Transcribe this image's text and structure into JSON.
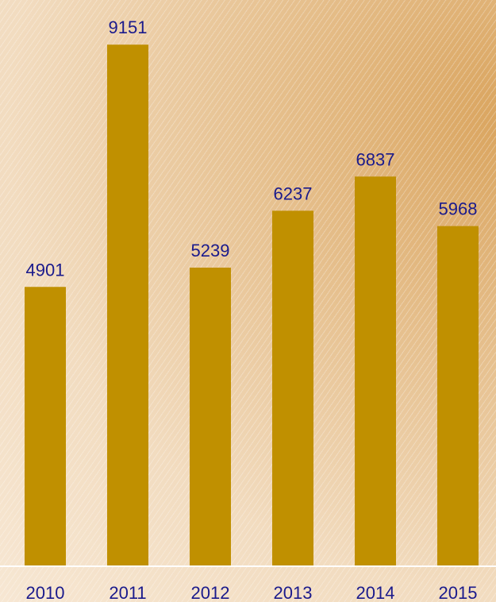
{
  "chart_data": {
    "type": "bar",
    "title": "",
    "xlabel": "",
    "ylabel": "",
    "categories": [
      "2010",
      "2011",
      "2012",
      "2013",
      "2014",
      "2015"
    ],
    "values": [
      4901,
      9151,
      5239,
      6237,
      6837,
      5968
    ],
    "ylim": [
      0,
      9600
    ],
    "grid": false,
    "legend": "none",
    "colors": {
      "bar": "#c09000",
      "label": "#1a1a8c",
      "baseline": "#ffffff"
    }
  }
}
